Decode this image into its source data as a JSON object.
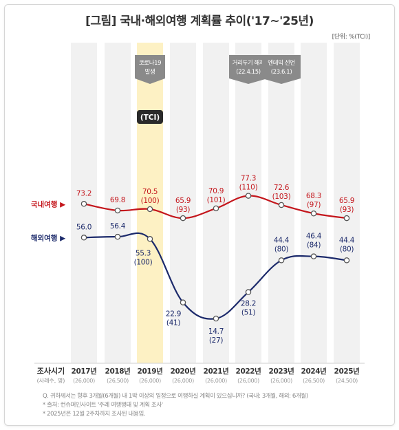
{
  "title": "[그림] 국내·해외여행 계획률 추이('17~'25년)",
  "unit": "[단위: %(TCI)]",
  "chart_data": {
    "type": "line",
    "categories": [
      "2017년",
      "2018년",
      "2019년",
      "2020년",
      "2021년",
      "2022년",
      "2023년",
      "2024년",
      "2025년"
    ],
    "sample_sizes": [
      "(26,000)",
      "(26,500)",
      "(26,000)",
      "(26,000)",
      "(26,000)",
      "(26,000)",
      "(26,000)",
      "(26,500)",
      "(24,500)"
    ],
    "x_header": "조사시기",
    "x_subheader": "(사례수, 명)",
    "series": [
      {
        "name": "국내여행 ▶",
        "color": "#c4161c",
        "values": [
          73.2,
          69.8,
          70.5,
          65.9,
          70.9,
          77.3,
          72.6,
          68.3,
          65.9
        ],
        "value_labels": [
          "73.2",
          "69.8",
          "70.5",
          "65.9",
          "70.9",
          "77.3",
          "72.6",
          "68.3",
          "65.9"
        ],
        "tci_labels": [
          "",
          "",
          "(100)",
          "(93)",
          "(101)",
          "(110)",
          "(103)",
          "(97)",
          "(93)"
        ]
      },
      {
        "name": "해외여행 ▶",
        "color": "#1c2a6b",
        "values": [
          56.0,
          56.4,
          55.3,
          22.9,
          14.7,
          28.2,
          44.4,
          46.4,
          44.4
        ],
        "value_labels": [
          "56.0",
          "56.4",
          "55.3",
          "22.9",
          "14.7",
          "28.2",
          "44.4",
          "46.4",
          "44.4"
        ],
        "tci_labels": [
          "",
          "",
          "(100)",
          "(41)",
          "(27)",
          "(51)",
          "(80)",
          "(84)",
          "(80)"
        ]
      }
    ],
    "tci_badge": "(TCI)",
    "annotations": [
      {
        "at": "2019년",
        "lines": [
          "코로나19",
          "발생"
        ]
      },
      {
        "at": "2022년",
        "lines": [
          "거리두기 해제",
          "(22.4.15)"
        ]
      },
      {
        "at": "2023년",
        "lines": [
          "엔데믹 선언",
          "(23.6.1)"
        ]
      }
    ],
    "highlight_category": "2019년"
  },
  "notes": [
    "Q. 귀하께서는 향후 3개월(6개월) 내 1박 이상의 일정으로 여행하실 계획이 있으십니까? (국내: 3개월, 해외: 6개월)",
    "* 출처: 컨슈머인사이트 '주례 여행행태 및 계획 조사'",
    "* 2025년은 12월 2주차까지 조사된 내용임."
  ]
}
